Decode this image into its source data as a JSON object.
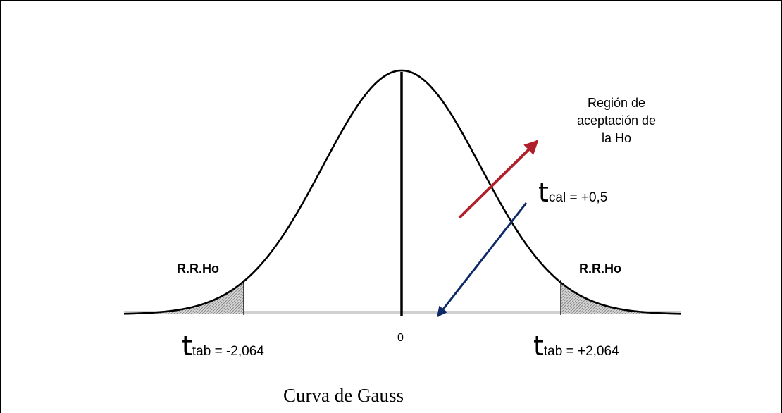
{
  "figure": {
    "caption": "Curva de Gauss",
    "acceptance_region": [
      "Región de",
      "aceptación de",
      "la Ho"
    ],
    "rejection_left": "R.R.Ho",
    "rejection_right": "R.R.Ho",
    "zero_label": "0",
    "t_tab_left": {
      "symbol": "t",
      "subscript": "tab",
      "value_text": " = -2,064"
    },
    "t_tab_right": {
      "symbol": "t",
      "subscript": "tab",
      "value_text": " = +2,064"
    },
    "t_cal": {
      "symbol": "t",
      "subscript": "cal",
      "value_text": " = +0,5"
    },
    "colors": {
      "curve": "#000000",
      "shade": "#9a9a9a",
      "axis": "#cfcfcf",
      "red_arrow": "#b0202a",
      "blue_arrow": "#0d2a66"
    }
  }
}
